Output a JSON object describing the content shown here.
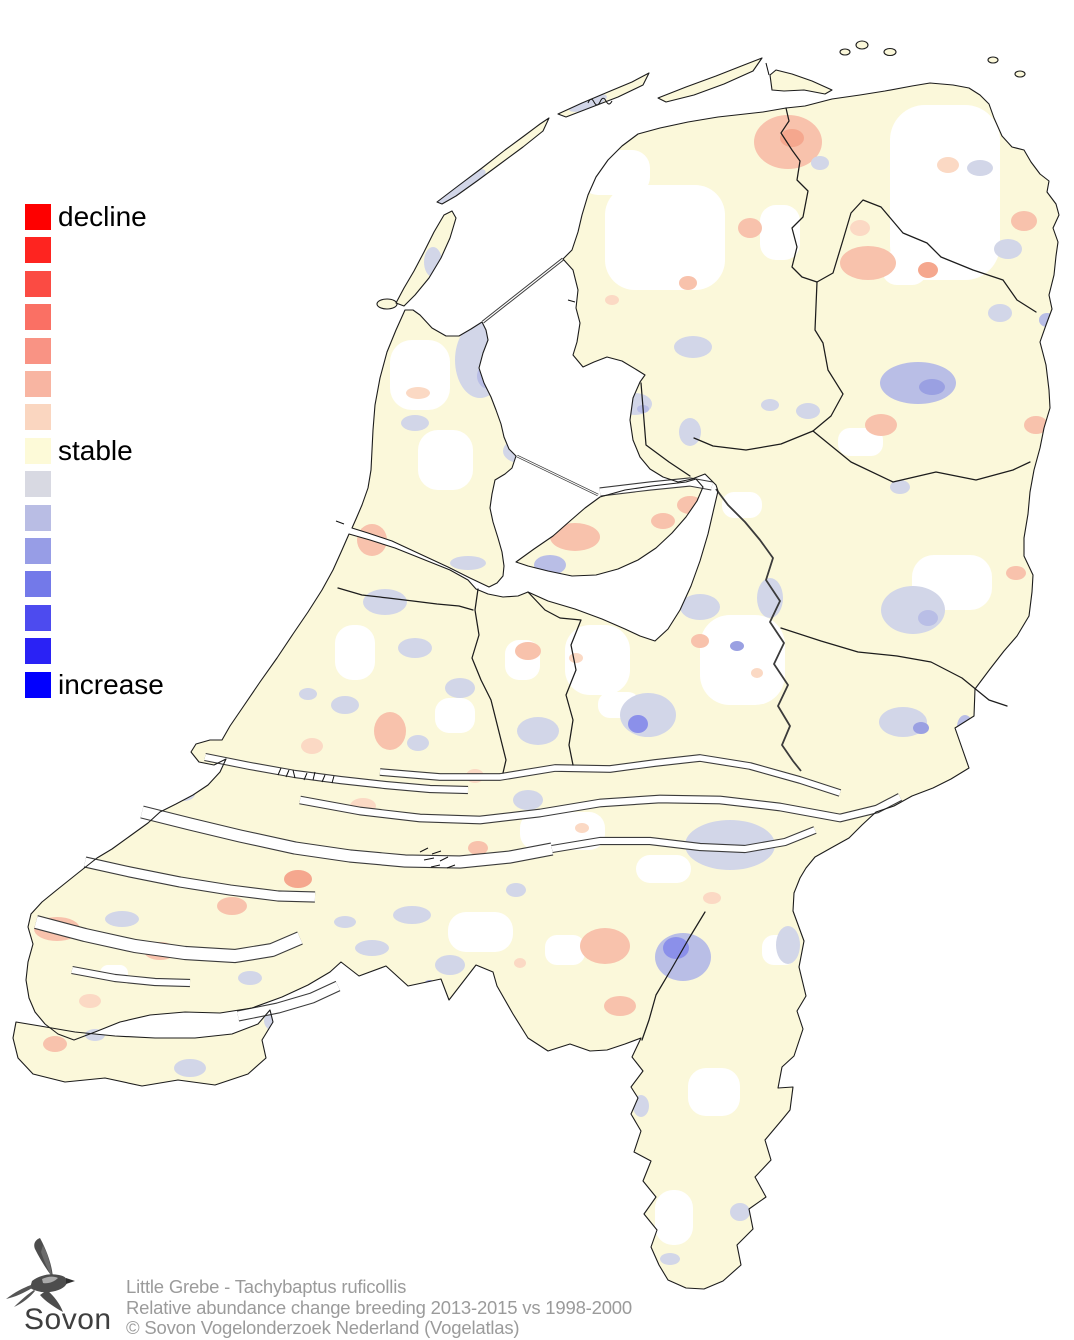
{
  "title": "Relative abundance change map - Netherlands",
  "legend": {
    "labels": {
      "top": "decline",
      "middle": "stable",
      "bottom": "increase"
    },
    "colors": [
      "#fe0000",
      "#fe2420",
      "#fb4b43",
      "#fa7064",
      "#f99384",
      "#f8b5a2",
      "#fad6c0",
      "#fdfad8",
      "#d8d9e2",
      "#b9bde4",
      "#979de6",
      "#7379e9",
      "#4d4bef",
      "#2a22f5",
      "#0200fe"
    ]
  },
  "caption": {
    "line1": "Little Grebe - Tachybaptus ruficollis",
    "line2": "Relative abundance change breeding 2013-2015 vs 1998-2000",
    "line3": "© Sovon Vogelonderzoek Nederland (Vogelatlas)"
  },
  "logo": {
    "wordmark": "Sovon"
  },
  "map": {
    "region": "Netherlands",
    "colors": {
      "land": "#fbf8da",
      "sea": "#ffffff",
      "no_data": "#ffffff",
      "decline_light": "#fbd9c4",
      "decline_mid": "#f8c2ac",
      "decline_strong": "#f5a78e",
      "increase_light": "#d2d6e8",
      "increase_mid": "#b9bee6",
      "increase_strong": "#9aa0e2",
      "increase_deep": "#8b90ea",
      "border": "#1c1c1c"
    }
  }
}
